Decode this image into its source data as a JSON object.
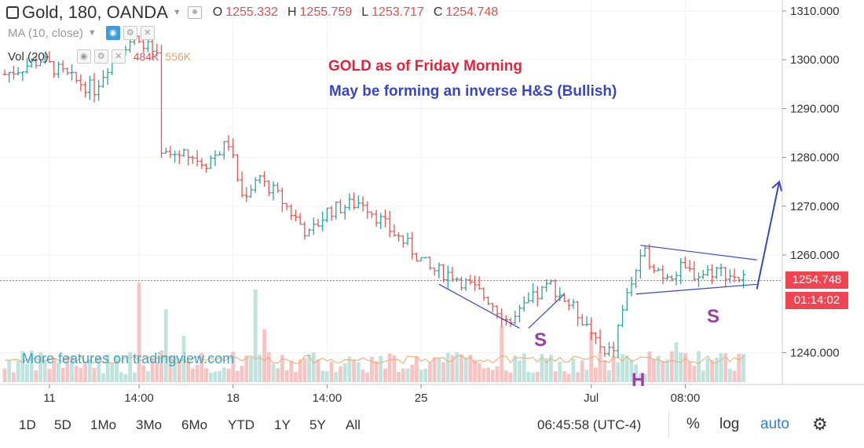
{
  "legend": {
    "symbol": "Gold, 180, OANDA",
    "open_label": "O",
    "open": "1255.332",
    "high_label": "H",
    "high": "1255.759",
    "low_label": "L",
    "low": "1253.717",
    "close_label": "C",
    "close": "1254.748",
    "ma_label": "MA (10, close)",
    "vol_label": "Vol (20)",
    "vol_value": "484K",
    "vol_ma_value": "556K"
  },
  "annotations": {
    "title": "GOLD as of Friday Morning",
    "subtitle": "May be forming an inverse H&S (Bullish)",
    "left_shoulder": "S",
    "head": "H",
    "right_shoulder": "S"
  },
  "price_tags": {
    "last_price": "1254.748",
    "countdown": "01:14:02"
  },
  "watermark": "More features on tradingview.com",
  "toolbar": {
    "timeframes": [
      "1D",
      "5D",
      "1Mo",
      "3Mo",
      "6Mo",
      "YTD",
      "1Y",
      "5Y",
      "All"
    ],
    "clock": "06:45:58 (UTC-4)",
    "percent": "%",
    "log": "log",
    "auto": "auto"
  },
  "colors": {
    "up": "#26a69a",
    "down": "#ef5350",
    "accent": "#2f7ed8",
    "annotation_blue": "#3746c9"
  },
  "chart_data": {
    "type": "candlestick",
    "title": "Gold, 180, OANDA",
    "y_ticks": [
      "1310.000",
      "1300.000",
      "1290.000",
      "1280.000",
      "1270.000",
      "1260.000",
      "1240.000"
    ],
    "x_ticks": [
      "11",
      "14:00",
      "18",
      "14:00",
      "25",
      "Jul",
      "08:00"
    ],
    "ylim": [
      1234,
      1311
    ],
    "last_price": 1254.748,
    "waypoints": [
      {
        "bar": 0,
        "price": 1297
      },
      {
        "bar": 8,
        "price": 1300
      },
      {
        "bar": 15,
        "price": 1296
      },
      {
        "bar": 20,
        "price": 1294
      },
      {
        "bar": 25,
        "price": 1302
      },
      {
        "bar": 30,
        "price": 1305
      },
      {
        "bar": 34,
        "price": 1300
      },
      {
        "bar": 35,
        "price": 1280
      },
      {
        "bar": 40,
        "price": 1281
      },
      {
        "bar": 45,
        "price": 1279
      },
      {
        "bar": 50,
        "price": 1283
      },
      {
        "bar": 53,
        "price": 1272
      },
      {
        "bar": 57,
        "price": 1276
      },
      {
        "bar": 62,
        "price": 1271
      },
      {
        "bar": 68,
        "price": 1264
      },
      {
        "bar": 72,
        "price": 1269
      },
      {
        "bar": 80,
        "price": 1271
      },
      {
        "bar": 85,
        "price": 1266
      },
      {
        "bar": 90,
        "price": 1262
      },
      {
        "bar": 95,
        "price": 1257
      },
      {
        "bar": 100,
        "price": 1256
      },
      {
        "bar": 108,
        "price": 1251
      },
      {
        "bar": 113,
        "price": 1246
      },
      {
        "bar": 118,
        "price": 1251
      },
      {
        "bar": 122,
        "price": 1254
      },
      {
        "bar": 126,
        "price": 1250
      },
      {
        "bar": 130,
        "price": 1246
      },
      {
        "bar": 134,
        "price": 1239
      },
      {
        "bar": 136,
        "price": 1241
      },
      {
        "bar": 138,
        "price": 1249
      },
      {
        "bar": 141,
        "price": 1257
      },
      {
        "bar": 143,
        "price": 1260
      },
      {
        "bar": 147,
        "price": 1256
      },
      {
        "bar": 151,
        "price": 1257
      },
      {
        "bar": 155,
        "price": 1256
      },
      {
        "bar": 159,
        "price": 1257
      },
      {
        "bar": 162,
        "price": 1256
      },
      {
        "bar": 165,
        "price": 1255
      }
    ],
    "volume_max": 80,
    "volume_spikes": [
      {
        "bar": 30,
        "value": 75
      },
      {
        "bar": 36,
        "value": 55
      },
      {
        "bar": 56,
        "value": 70
      },
      {
        "bar": 58,
        "value": 40
      },
      {
        "bar": 40,
        "value": 35
      },
      {
        "bar": 111,
        "value": 42
      },
      {
        "bar": 131,
        "value": 38
      },
      {
        "bar": 150,
        "value": 30
      }
    ],
    "annotation_lines": [
      {
        "name": "left-shoulder-lower",
        "bar1": 97,
        "price1": 1254,
        "bar2": 115,
        "price2": 1245
      },
      {
        "name": "left-shoulder-upper",
        "bar1": 117,
        "price1": 1245,
        "bar2": 125,
        "price2": 1252
      },
      {
        "name": "triangle-top",
        "bar1": 142,
        "price1": 1262,
        "bar2": 168,
        "price2": 1259
      },
      {
        "name": "triangle-bottom",
        "bar1": 141,
        "price1": 1252,
        "bar2": 168,
        "price2": 1254
      },
      {
        "name": "breakout-arrow",
        "bar1": 168,
        "price1": 1253,
        "bar2": 173,
        "price2": 1275
      }
    ]
  }
}
